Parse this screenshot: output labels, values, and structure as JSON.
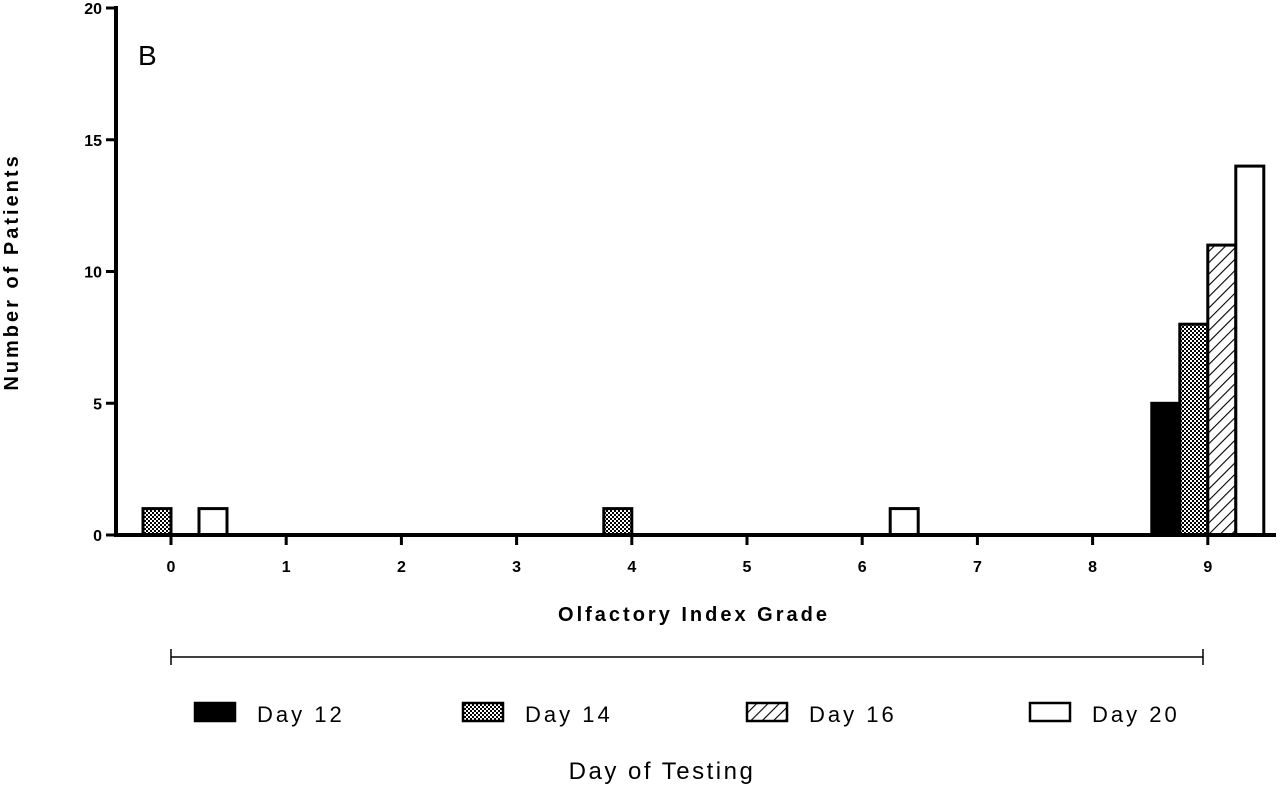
{
  "chart_data": {
    "type": "bar",
    "panel_label": "B",
    "xlabel": "Olfactory Index Grade",
    "ylabel": "Number of Patients",
    "categories": [
      "0",
      "1",
      "2",
      "3",
      "4",
      "5",
      "6",
      "7",
      "8",
      "9"
    ],
    "ylim": [
      0,
      20
    ],
    "yticks": [
      "0",
      "5",
      "10",
      "15",
      "20"
    ],
    "grid": false,
    "legend_title": "Day of Testing",
    "legend_position": "bottom",
    "series": [
      {
        "name": "Day 12",
        "pattern": "solid-black",
        "values": [
          0,
          0,
          0,
          0,
          0,
          0,
          0,
          0,
          0,
          5
        ]
      },
      {
        "name": "Day 14",
        "pattern": "checkered",
        "values": [
          1,
          0,
          0,
          0,
          1,
          0,
          0,
          0,
          0,
          8
        ]
      },
      {
        "name": "Day 16",
        "pattern": "diagonal-hatch",
        "values": [
          0,
          0,
          0,
          0,
          0,
          0,
          0,
          0,
          0,
          11
        ]
      },
      {
        "name": "Day 20",
        "pattern": "white",
        "values": [
          1,
          0,
          0,
          0,
          0,
          0,
          1,
          0,
          0,
          14
        ]
      }
    ]
  }
}
